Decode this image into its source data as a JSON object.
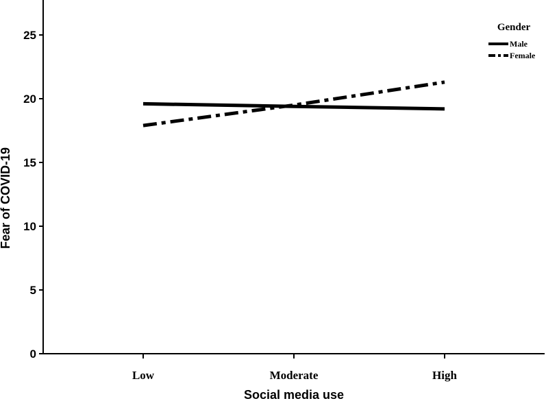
{
  "chart_data": {
    "type": "line",
    "xlabel": "Social media use",
    "ylabel": "Fear of COVID-19",
    "categories": [
      "Low",
      "Moderate",
      "High"
    ],
    "ylim": [
      0,
      27
    ],
    "yticks": [
      0,
      5,
      10,
      15,
      20,
      25
    ],
    "grid": false,
    "legend": {
      "title": "Gender",
      "position": "top-right"
    },
    "series": [
      {
        "name": "Male",
        "values": [
          19.6,
          19.4,
          19.2
        ],
        "style": "solid",
        "color": "#000000"
      },
      {
        "name": "Female",
        "values": [
          17.9,
          19.5,
          21.3
        ],
        "style": "dash-dot",
        "color": "#000000"
      }
    ]
  }
}
